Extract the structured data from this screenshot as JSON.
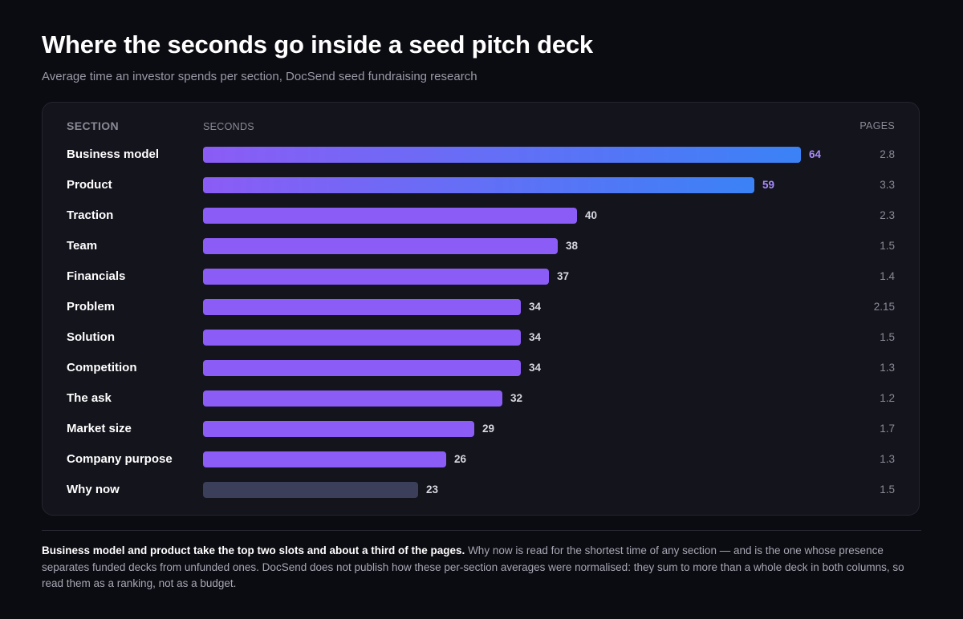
{
  "page": {
    "title": "Where the seconds go inside a seed pitch deck",
    "subtitle": "Average time an investor spends per section, DocSend seed fundraising research"
  },
  "columns": {
    "section": "SECTION",
    "seconds": "SECONDS",
    "pages": "PAGES"
  },
  "colors": {
    "bar_purple": "#8b5cf6",
    "bar_blue": "#3b82f6",
    "bar_muted": "#3b3f5a",
    "accent_value": "#a78bfa"
  },
  "chart_data": {
    "type": "bar",
    "orientation": "horizontal",
    "categories": [
      "Business model",
      "Product",
      "Traction",
      "Team",
      "Financials",
      "Problem",
      "Solution",
      "Competition",
      "The ask",
      "Market size",
      "Company purpose",
      "Why now"
    ],
    "series": [
      {
        "values": [
          64,
          59,
          40,
          38,
          37,
          34,
          34,
          34,
          32,
          29,
          26,
          23
        ]
      }
    ],
    "pages": [
      "2.8",
      "3.3",
      "2.3",
      "1.5",
      "1.4",
      "2.15",
      "1.5",
      "1.3",
      "1.2",
      "1.7",
      "1.3",
      "1.5"
    ],
    "xlim": [
      0,
      64
    ],
    "grid": false,
    "highlighted_top": [
      "Business model",
      "Product"
    ],
    "muted": [
      "Why now"
    ]
  },
  "note": {
    "bold": "Business model and product take the top two slots and about a third of the pages.",
    "text": " Why now is read for the shortest time of any section — and is the one whose presence separates funded decks from unfunded ones. DocSend does not publish how these per-section averages were normalised: they sum to more than a whole deck in both columns, so read them as a ranking, not as a budget."
  }
}
